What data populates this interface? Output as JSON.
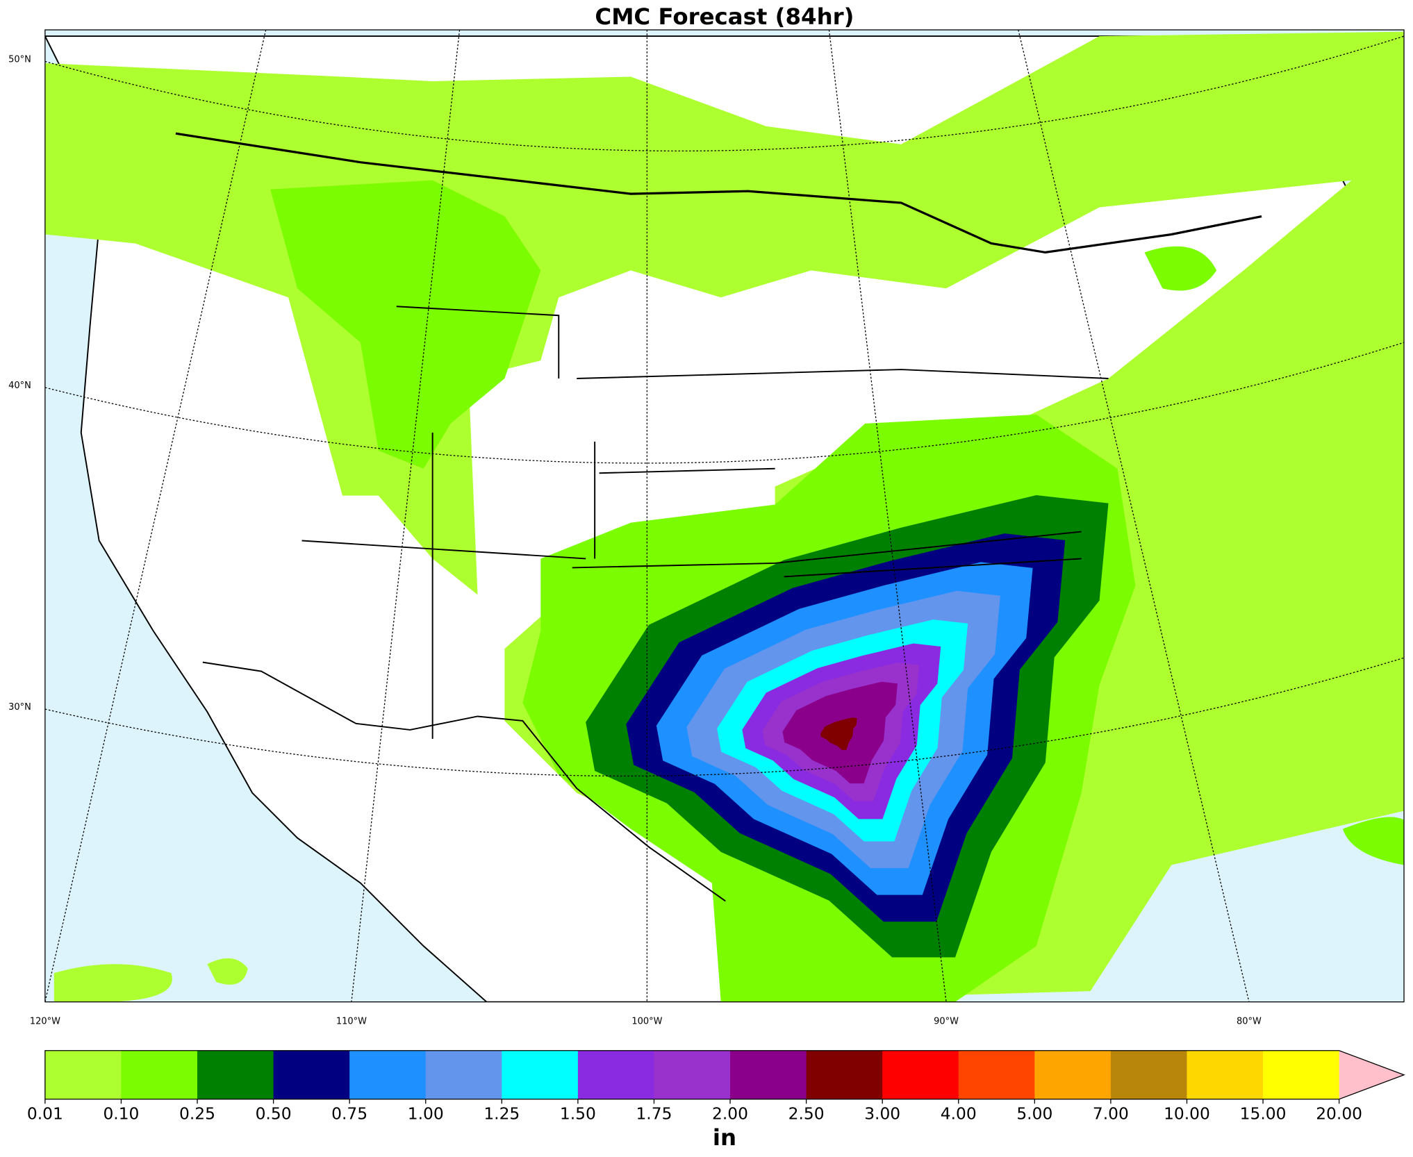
{
  "header": {
    "title": "CMC Forecast (84hr)"
  },
  "map": {
    "lat_labels": [
      "50°N",
      "40°N",
      "30°N"
    ],
    "lon_labels": [
      "120°W",
      "110°W",
      "100°W",
      "90°W",
      "80°W"
    ]
  },
  "colorbar": {
    "ticks": [
      {
        "value": 0.01,
        "label": "0.01"
      },
      {
        "value": 0.1,
        "label": "0.10"
      },
      {
        "value": 0.25,
        "label": "0.25"
      },
      {
        "value": 0.5,
        "label": "0.50"
      },
      {
        "value": 0.75,
        "label": "0.75"
      },
      {
        "value": 1,
        "label": "1.00"
      },
      {
        "value": 1.25,
        "label": "1.25"
      },
      {
        "value": 1.5,
        "label": "1.50"
      },
      {
        "value": 1.75,
        "label": "1.75"
      },
      {
        "value": 2,
        "label": "2.00"
      },
      {
        "value": 2.5,
        "label": "2.50"
      },
      {
        "value": 3,
        "label": "3.00"
      },
      {
        "value": 4,
        "label": "4.00"
      },
      {
        "value": 5,
        "label": "5.00"
      },
      {
        "value": 7,
        "label": "7.00"
      },
      {
        "value": 10,
        "label": "10.00"
      },
      {
        "value": 15,
        "label": "15.00"
      },
      {
        "value": 20,
        "label": "20.00"
      }
    ],
    "colors": [
      "#adff2f",
      "#7cfc00",
      "#008000",
      "#000080",
      "#1e90ff",
      "#6495ed",
      "#00ffff",
      "#8a2be2",
      "#9932cc",
      "#8b008b",
      "#800000",
      "#ff0000",
      "#ff4500",
      "#ffa500",
      "#b8860b",
      "#ffd700",
      "#ffff00"
    ],
    "extend_color": "#ffc0cb",
    "unit": "in"
  }
}
